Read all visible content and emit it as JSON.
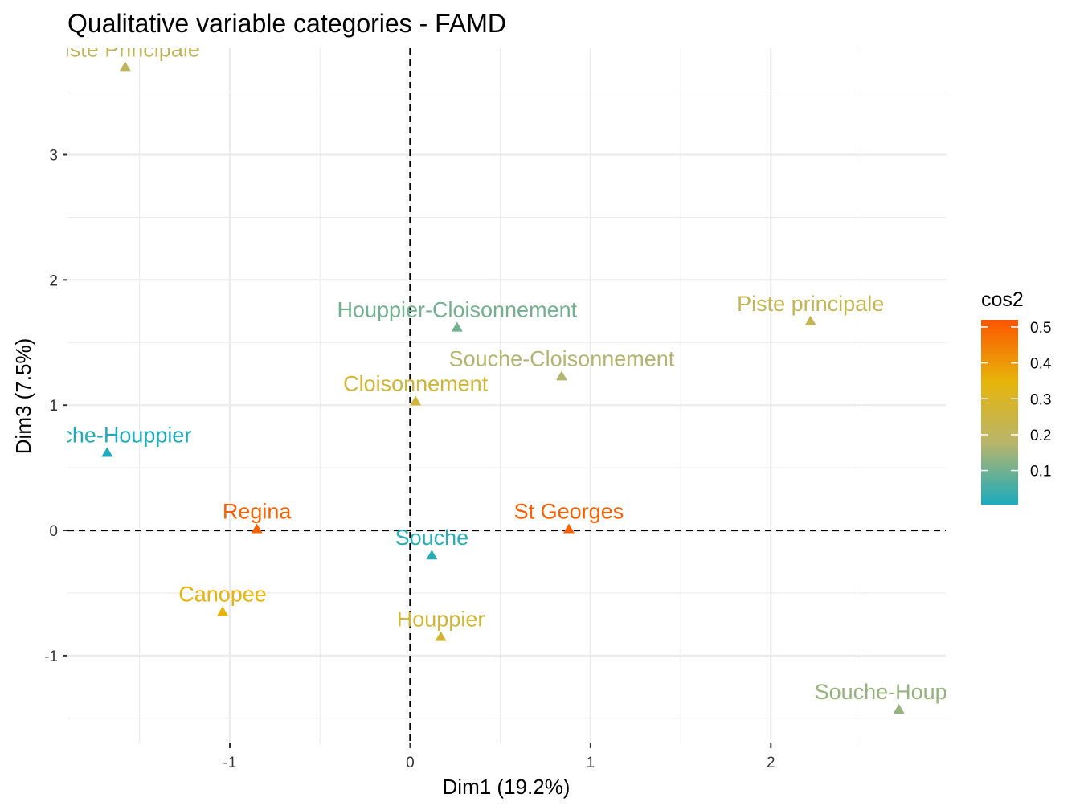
{
  "chart_data": {
    "type": "scatter",
    "title": "Qualitative variable categories - FAMD",
    "xlabel": "Dim1 (19.2%)",
    "ylabel": "Dim3 (7.5%)",
    "xlim": [
      -1.9,
      2.97
    ],
    "ylim": [
      -1.7,
      3.85
    ],
    "xticks": [
      -1,
      0,
      1,
      2
    ],
    "yticks": [
      -1,
      0,
      1,
      2,
      3
    ],
    "grid": true,
    "reference_lines": {
      "x": 0,
      "y": 0,
      "style": "dashed"
    },
    "legend": {
      "title": "cos2",
      "placement": "right",
      "breaks": [
        0.1,
        0.2,
        0.3,
        0.4,
        0.5
      ],
      "range": [
        0.005,
        0.52
      ],
      "colors": [
        "#1aabbd",
        "#b8b56b",
        "#e6b50a",
        "#fd5500"
      ]
    },
    "points": [
      {
        "label": "Piste Principale",
        "x": -1.58,
        "y": 3.7,
        "cos2": 0.2
      },
      {
        "label": "Souche-Houppier",
        "x": -1.68,
        "y": 0.62,
        "cos2": 0.01
      },
      {
        "label": "Regina",
        "x": -0.85,
        "y": 0.01,
        "cos2": 0.5
      },
      {
        "label": "Canopee",
        "x": -1.04,
        "y": -0.65,
        "cos2": 0.35
      },
      {
        "label": "Houppier-Cloisonnement",
        "x": 0.26,
        "y": 1.62,
        "cos2": 0.1
      },
      {
        "label": "Cloisonnement",
        "x": 0.03,
        "y": 1.03,
        "cos2": 0.27
      },
      {
        "label": "Souche-Cloisonnement",
        "x": 0.84,
        "y": 1.23,
        "cos2": 0.17
      },
      {
        "label": "Piste principale",
        "x": 2.22,
        "y": 1.67,
        "cos2": 0.22
      },
      {
        "label": "St Georges",
        "x": 0.88,
        "y": 0.01,
        "cos2": 0.5
      },
      {
        "label": "Souche",
        "x": 0.12,
        "y": -0.2,
        "cos2": 0.02
      },
      {
        "label": "Houppier",
        "x": 0.17,
        "y": -0.85,
        "cos2": 0.27
      },
      {
        "label": "Souche-Houppier",
        "x": 2.71,
        "y": -1.43,
        "cos2": 0.14
      }
    ]
  }
}
